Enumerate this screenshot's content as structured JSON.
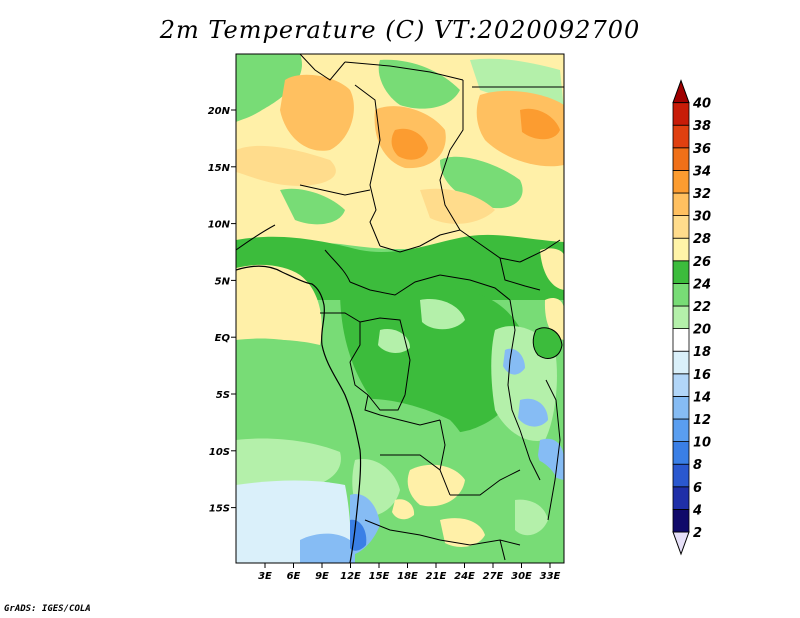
{
  "title": "2m Temperature (C) VT:2020092700",
  "footer": "GrADS: IGES/COLA",
  "map": {
    "lon_range": [
      0,
      34
    ],
    "lat_range": [
      -20,
      25
    ],
    "lat_labels": [
      "20N",
      "15N",
      "10N",
      "5N",
      "EQ",
      "5S",
      "10S",
      "15S"
    ],
    "lon_labels": [
      "3E",
      "6E",
      "9E",
      "12E",
      "15E",
      "18E",
      "21E",
      "24E",
      "27E",
      "30E",
      "33E"
    ]
  },
  "colorbar": {
    "labels": [
      "2",
      "4",
      "6",
      "8",
      "10",
      "12",
      "14",
      "16",
      "18",
      "20",
      "22",
      "24",
      "26",
      "28",
      "30",
      "32",
      "34",
      "36",
      "38",
      "40"
    ],
    "colors": [
      "#100a6a",
      "#1f2fa8",
      "#2a58cf",
      "#3a7fe6",
      "#5a9ef0",
      "#86bcf4",
      "#b2d6f8",
      "#daf0fa",
      "#ffffff",
      "#b4f0aa",
      "#78dc76",
      "#3cbc3c",
      "#fff4a8",
      "#ffdc8c",
      "#ffc060",
      "#fc9c30",
      "#f07018",
      "#e04010",
      "#c81c08",
      "#a00000"
    ]
  },
  "palette": {
    "tan": "#fff0a8",
    "green_mid": "#78dc76",
    "green_dark": "#3cbc3c",
    "light_green": "#b4f0aa",
    "orange": "#ffc060",
    "dark_orange": "#fc9c30"
  }
}
